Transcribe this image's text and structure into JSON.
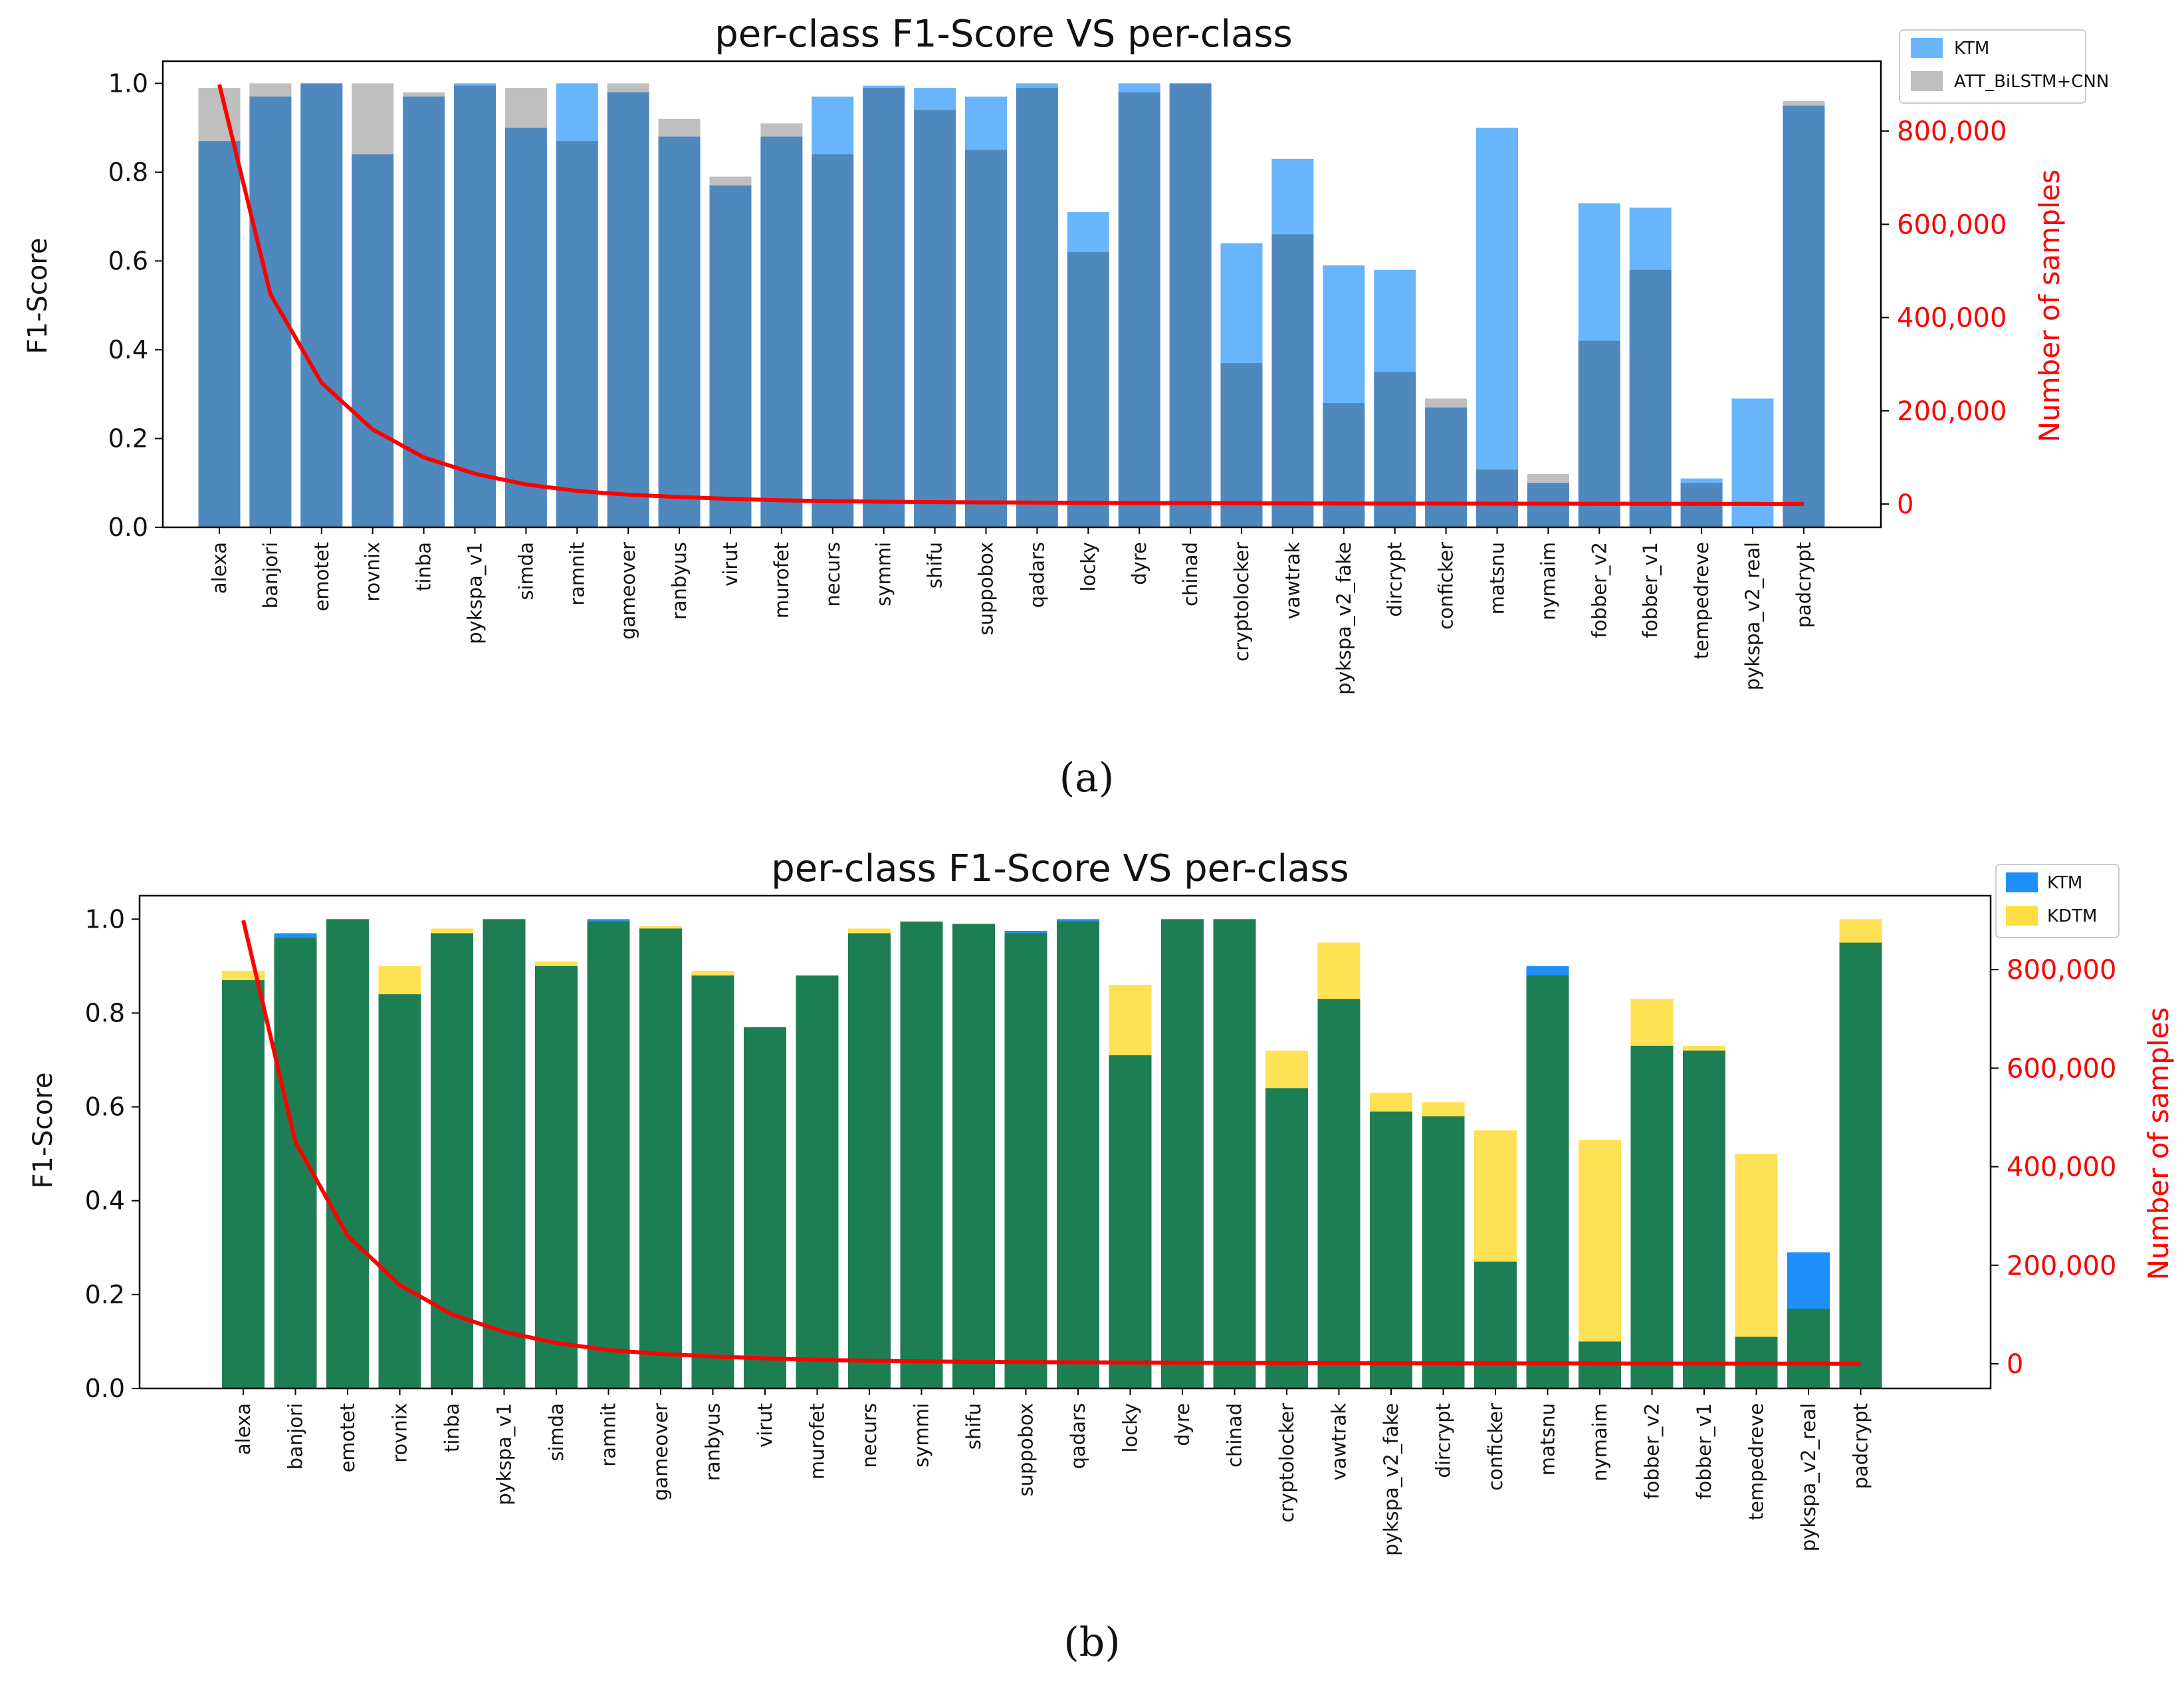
{
  "chart_data": [
    {
      "type": "bar",
      "title": "per-class F1-Score VS per-class",
      "subfigure_label": "(a)",
      "ylabel": "F1-Score",
      "y2label": "Number of samples",
      "ylim": [
        0,
        1.05
      ],
      "y2lim": [
        -50000,
        950000
      ],
      "yticks": [
        "0.0",
        "0.2",
        "0.4",
        "0.6",
        "0.8",
        "1.0"
      ],
      "y2ticks": [
        "0",
        "200,000",
        "400,000",
        "600,000",
        "800,000"
      ],
      "categories": [
        "alexa",
        "banjori",
        "emotet",
        "rovnix",
        "tinba",
        "pykspa_v1",
        "simda",
        "ramnit",
        "gameover",
        "ranbyus",
        "virut",
        "murofet",
        "necurs",
        "symmi",
        "shifu",
        "suppobox",
        "qadars",
        "locky",
        "dyre",
        "chinad",
        "cryptolocker",
        "vawtrak",
        "pykspa_v2_fake",
        "dircrypt",
        "conficker",
        "matsnu",
        "nymaim",
        "fobber_v2",
        "fobber_v1",
        "tempedreve",
        "pykspa_v2_real",
        "padcrypt"
      ],
      "series": [
        {
          "name": "KTM",
          "color": "#3ea0fb",
          "values": [
            0.87,
            0.97,
            1.0,
            0.84,
            0.97,
            1.0,
            0.9,
            1.0,
            0.98,
            0.88,
            0.77,
            0.88,
            0.97,
            0.995,
            0.99,
            0.97,
            1.0,
            0.71,
            1.0,
            1.0,
            0.64,
            0.83,
            0.59,
            0.58,
            0.27,
            0.9,
            0.1,
            0.73,
            0.72,
            0.11,
            0.29,
            0.95
          ]
        },
        {
          "name": "ATT_BiLSTM+CNN",
          "color": "#adadad",
          "values": [
            0.99,
            1.0,
            1.0,
            1.0,
            0.98,
            0.995,
            0.99,
            0.87,
            1.0,
            0.92,
            0.79,
            0.91,
            0.84,
            0.99,
            0.94,
            0.85,
            0.99,
            0.62,
            0.98,
            1.0,
            0.37,
            0.66,
            0.28,
            0.35,
            0.29,
            0.13,
            0.12,
            0.42,
            0.58,
            0.1,
            0.0,
            0.96
          ]
        }
      ],
      "samples": [
        900000,
        450000,
        260000,
        160000,
        100000,
        65000,
        42000,
        28000,
        20000,
        15000,
        11000,
        8000,
        6000,
        5000,
        4000,
        3500,
        3000,
        2500,
        2000,
        1800,
        1500,
        1200,
        1000,
        900,
        800,
        700,
        600,
        500,
        400,
        300,
        200,
        100
      ]
    },
    {
      "type": "bar",
      "title": "per-class F1-Score VS per-class",
      "subfigure_label": "(b)",
      "ylabel": "F1-Score",
      "y2label": "Number of samples",
      "ylim": [
        0,
        1.05
      ],
      "y2lim": [
        -50000,
        950000
      ],
      "yticks": [
        "0.0",
        "0.2",
        "0.4",
        "0.6",
        "0.8",
        "1.0"
      ],
      "y2ticks": [
        "0",
        "200,000",
        "400,000",
        "600,000",
        "800,000"
      ],
      "categories": [
        "alexa",
        "banjori",
        "emotet",
        "rovnix",
        "tinba",
        "pykspa_v1",
        "simda",
        "ramnit",
        "gameover",
        "ranbyus",
        "virut",
        "murofet",
        "necurs",
        "symmi",
        "shifu",
        "suppobox",
        "qadars",
        "locky",
        "dyre",
        "chinad",
        "cryptolocker",
        "vawtrak",
        "pykspa_v2_fake",
        "dircrypt",
        "conficker",
        "matsnu",
        "nymaim",
        "fobber_v2",
        "fobber_v1",
        "tempedreve",
        "pykspa_v2_real",
        "padcrypt"
      ],
      "series": [
        {
          "name": "KTM",
          "color": "#1e8ff8",
          "values": [
            0.87,
            0.97,
            1.0,
            0.84,
            0.97,
            1.0,
            0.9,
            1.0,
            0.98,
            0.88,
            0.77,
            0.88,
            0.97,
            0.995,
            0.99,
            0.975,
            1.0,
            0.71,
            1.0,
            1.0,
            0.64,
            0.83,
            0.59,
            0.58,
            0.27,
            0.9,
            0.1,
            0.73,
            0.72,
            0.11,
            0.29,
            0.95
          ]
        },
        {
          "name": "KDTM",
          "color": "#ffde42",
          "values": [
            0.89,
            0.96,
            1.0,
            0.9,
            0.98,
            1.0,
            0.91,
            0.995,
            0.985,
            0.89,
            0.77,
            0.88,
            0.98,
            0.995,
            0.99,
            0.97,
            0.995,
            0.86,
            1.0,
            1.0,
            0.72,
            0.95,
            0.63,
            0.61,
            0.55,
            0.88,
            0.53,
            0.83,
            0.73,
            0.5,
            0.17,
            1.0
          ]
        }
      ],
      "samples": [
        900000,
        450000,
        260000,
        160000,
        100000,
        65000,
        42000,
        28000,
        20000,
        15000,
        11000,
        8000,
        6000,
        5000,
        4000,
        3500,
        3000,
        2500,
        2000,
        1800,
        1500,
        1200,
        1000,
        900,
        800,
        700,
        600,
        500,
        400,
        300,
        200,
        100
      ]
    }
  ]
}
